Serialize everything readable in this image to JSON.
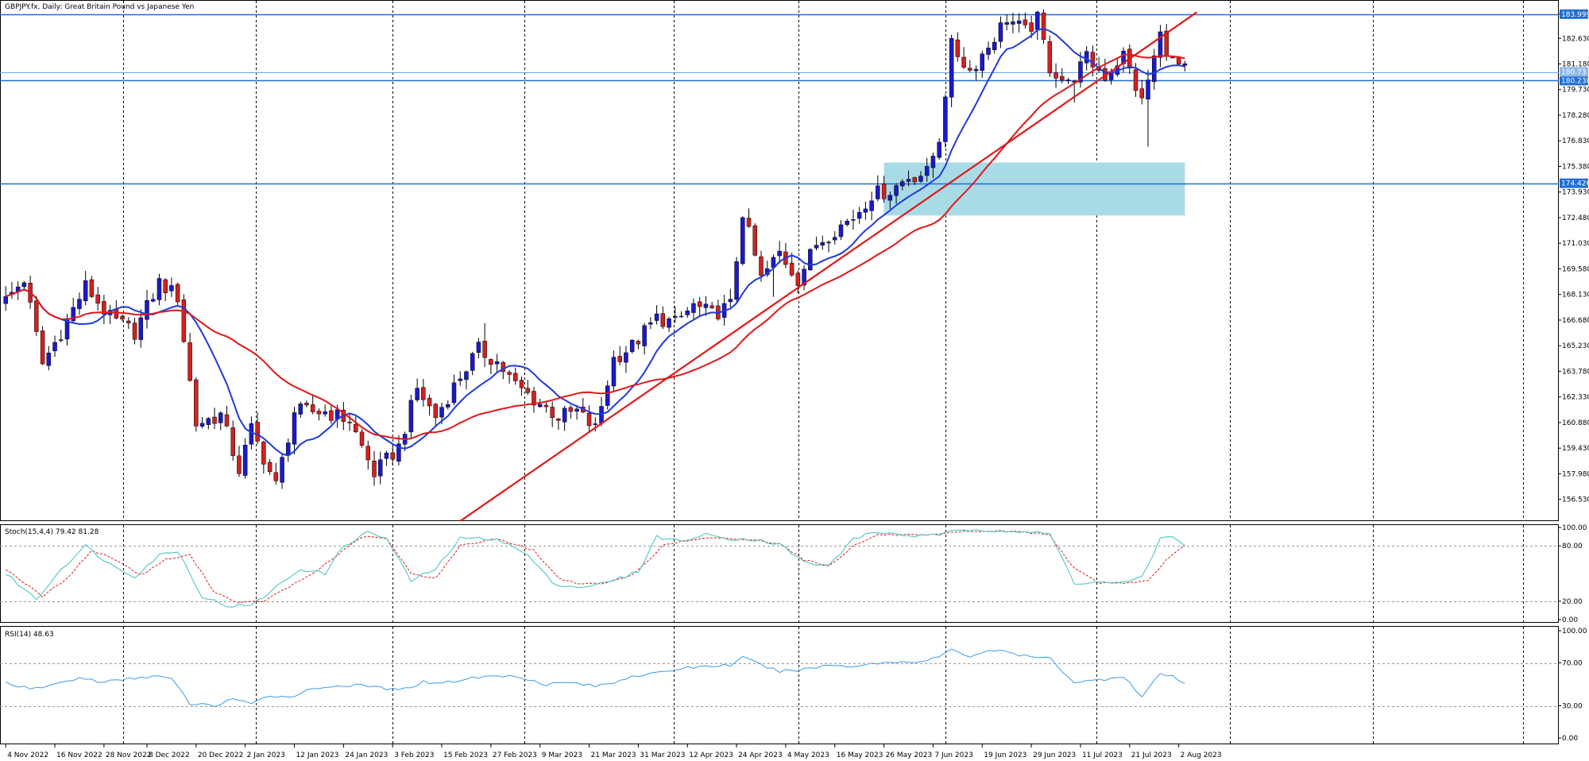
{
  "header": {
    "main_label": "GBPJPY.fx, Daily:  Great Britain Pound vs Japanese Yen",
    "stoch_label": "Stoch(15,4,4) 79.42 81.28",
    "rsi_label": "RSI(14) 48.63"
  },
  "colors": {
    "bull": "#1a1acc",
    "bear": "#d42020",
    "ma_fast": "#1e3adf",
    "ma_slow": "#e01818",
    "trendline": "#e01818",
    "hline": "#1f6fd6",
    "zone": "#a8dbe6",
    "stoch_main": "#3ec2c2",
    "stoch_signal": "#e01818",
    "rsi": "#3d9be9",
    "grid": "#000000"
  },
  "chart_data": [
    {
      "type": "candlestick",
      "symbol": "GBPJPY.fx",
      "timeframe": "Daily",
      "title": "GBPJPY.fx, Daily:  Great Britain Pound vs Japanese Yen",
      "ylim": [
        155.3,
        184.8
      ],
      "y_ticks": [
        "183.999",
        "182.630",
        "181.180",
        "179.730",
        "178.280",
        "176.830",
        "175.380",
        "173.930",
        "172.480",
        "171.030",
        "169.580",
        "168.130",
        "166.680",
        "165.230",
        "163.780",
        "162.330",
        "160.880",
        "159.430",
        "157.980",
        "156.530"
      ],
      "y_tick_values": [
        183.999,
        182.63,
        181.18,
        179.73,
        178.28,
        176.83,
        175.38,
        173.93,
        172.48,
        171.03,
        169.58,
        168.13,
        166.68,
        165.23,
        163.78,
        162.33,
        160.88,
        159.43,
        157.98,
        156.53
      ],
      "price_labels": [
        {
          "value": 183.999,
          "text": "183.999"
        },
        {
          "value": 180.238,
          "text": "180.238"
        },
        {
          "value": 174.426,
          "text": "174.426"
        },
        {
          "value": 180.73,
          "text": "180.73"
        }
      ],
      "x_labels": [
        "4 Nov 2022",
        "16 Nov 2022",
        "28 Nov 2022",
        "8 Dec 2022",
        "20 Dec 2022",
        "2 Jan 2023",
        "12 Jan 2023",
        "24 Jan 2023",
        "3 Feb 2023",
        "15 Feb 2023",
        "27 Feb 2023",
        "9 Mar 2023",
        "21 Mar 2023",
        "31 Mar 2023",
        "12 Apr 2023",
        "24 Apr 2023",
        "4 May 2023",
        "16 May 2023",
        "26 May 2023",
        "7 Jun 2023",
        "19 Jun 2023",
        "29 Jun 2023",
        "11 Jul 2023",
        "21 Jul 2023",
        "2 Aug 2023"
      ],
      "x_label_index": [
        0,
        8,
        16,
        23,
        31,
        39,
        47,
        55,
        63,
        71,
        79,
        87,
        95,
        103,
        111,
        119,
        127,
        135,
        143,
        151,
        159,
        167,
        175,
        183,
        191
      ],
      "horizontal_lines": [
        183.999,
        180.238,
        174.426,
        180.73
      ],
      "zone": {
        "from_index": 143,
        "to_index": 192,
        "low": 172.6,
        "high": 175.6
      },
      "trendlines": [
        {
          "from_index": 74,
          "from_value": 155.3,
          "to_index": 192,
          "to_value": 183.7
        }
      ],
      "moving_averages": [
        {
          "period": 10,
          "color_key": "ma_fast"
        },
        {
          "period": 30,
          "color_key": "ma_slow"
        }
      ],
      "key_points": [
        [
          0,
          167.8
        ],
        [
          3,
          169.0
        ],
        [
          6,
          164.2
        ],
        [
          9,
          166.0
        ],
        [
          13,
          168.6
        ],
        [
          17,
          166.8
        ],
        [
          21,
          166.0
        ],
        [
          25,
          168.8
        ],
        [
          28,
          168.0
        ],
        [
          31,
          160.8
        ],
        [
          35,
          161.3
        ],
        [
          38,
          158.2
        ],
        [
          40,
          160.5
        ],
        [
          44,
          157.3
        ],
        [
          47,
          161.5
        ],
        [
          52,
          161.5
        ],
        [
          56,
          161.0
        ],
        [
          60,
          158.0
        ],
        [
          64,
          159.5
        ],
        [
          67,
          162.8
        ],
        [
          70,
          161.2
        ],
        [
          74,
          163.5
        ],
        [
          77,
          165.0
        ],
        [
          80,
          164.3
        ],
        [
          83,
          163.0
        ],
        [
          86,
          162.2
        ],
        [
          90,
          161.2
        ],
        [
          93,
          161.5
        ],
        [
          96,
          160.5
        ],
        [
          99,
          164.5
        ],
        [
          102,
          165.2
        ],
        [
          106,
          166.8
        ],
        [
          109,
          166.5
        ],
        [
          112,
          167.5
        ],
        [
          115,
          167.0
        ],
        [
          118,
          167.5
        ],
        [
          120,
          172.8
        ],
        [
          123,
          169.0
        ],
        [
          126,
          170.5
        ],
        [
          129,
          169.0
        ],
        [
          132,
          171.0
        ],
        [
          135,
          171.8
        ],
        [
          138,
          172.5
        ],
        [
          141,
          173.8
        ],
        [
          144,
          174.0
        ],
        [
          147,
          174.8
        ],
        [
          150,
          175.0
        ],
        [
          152,
          177.0
        ],
        [
          154,
          182.2
        ],
        [
          157,
          180.8
        ],
        [
          160,
          182.2
        ],
        [
          163,
          183.8
        ],
        [
          166,
          183.0
        ],
        [
          168,
          183.7
        ],
        [
          170,
          181.0
        ],
        [
          173,
          180.0
        ],
        [
          176,
          181.5
        ],
        [
          179,
          180.5
        ],
        [
          182,
          181.7
        ],
        [
          185,
          179.0
        ],
        [
          188,
          182.8
        ],
        [
          190,
          181.3
        ],
        [
          192,
          180.8
        ]
      ],
      "spikes": [
        {
          "index": 168,
          "high": 184.2
        },
        {
          "index": 174,
          "low": 179.0
        },
        {
          "index": 186,
          "low": 176.5
        },
        {
          "index": 125,
          "low": 168.0
        },
        {
          "index": 54,
          "high": 161.9
        },
        {
          "index": 78,
          "high": 166.5
        }
      ]
    },
    {
      "type": "line",
      "name": "Stoch(15,4,4)",
      "ylim": [
        0,
        100
      ],
      "y_ticks": [
        "100.00",
        "80.00",
        "20.00",
        "0.00"
      ],
      "y_tick_values": [
        100,
        80,
        20,
        0
      ],
      "levels": [
        80,
        20
      ],
      "current": [
        79.42,
        81.28
      ],
      "main_points": [
        [
          0,
          50
        ],
        [
          5,
          22
        ],
        [
          9,
          55
        ],
        [
          13,
          80
        ],
        [
          17,
          60
        ],
        [
          21,
          47
        ],
        [
          25,
          70
        ],
        [
          28,
          75
        ],
        [
          32,
          25
        ],
        [
          36,
          15
        ],
        [
          40,
          15
        ],
        [
          44,
          35
        ],
        [
          48,
          55
        ],
        [
          52,
          50
        ],
        [
          55,
          80
        ],
        [
          59,
          95
        ],
        [
          62,
          88
        ],
        [
          66,
          42
        ],
        [
          70,
          55
        ],
        [
          74,
          88
        ],
        [
          80,
          88
        ],
        [
          85,
          70
        ],
        [
          89,
          40
        ],
        [
          93,
          35
        ],
        [
          98,
          40
        ],
        [
          103,
          52
        ],
        [
          106,
          90
        ],
        [
          110,
          85
        ],
        [
          114,
          92
        ],
        [
          118,
          88
        ],
        [
          122,
          87
        ],
        [
          126,
          82
        ],
        [
          130,
          62
        ],
        [
          134,
          58
        ],
        [
          138,
          88
        ],
        [
          142,
          95
        ],
        [
          146,
          92
        ],
        [
          150,
          90
        ],
        [
          154,
          95
        ],
        [
          158,
          98
        ],
        [
          162,
          97
        ],
        [
          166,
          95
        ],
        [
          170,
          93
        ],
        [
          174,
          40
        ],
        [
          178,
          40
        ],
        [
          182,
          40
        ],
        [
          185,
          45
        ],
        [
          188,
          88
        ],
        [
          190,
          90
        ],
        [
          192,
          82
        ]
      ],
      "signal_points": [
        [
          0,
          55
        ],
        [
          6,
          25
        ],
        [
          10,
          45
        ],
        [
          14,
          75
        ],
        [
          18,
          65
        ],
        [
          22,
          48
        ],
        [
          26,
          65
        ],
        [
          30,
          70
        ],
        [
          34,
          30
        ],
        [
          38,
          18
        ],
        [
          42,
          20
        ],
        [
          46,
          35
        ],
        [
          50,
          50
        ],
        [
          54,
          70
        ],
        [
          58,
          90
        ],
        [
          62,
          88
        ],
        [
          66,
          50
        ],
        [
          70,
          45
        ],
        [
          74,
          80
        ],
        [
          80,
          88
        ],
        [
          86,
          75
        ],
        [
          90,
          45
        ],
        [
          94,
          38
        ],
        [
          98,
          40
        ],
        [
          102,
          48
        ],
        [
          107,
          80
        ],
        [
          110,
          85
        ],
        [
          114,
          88
        ],
        [
          118,
          88
        ],
        [
          122,
          86
        ],
        [
          126,
          83
        ],
        [
          130,
          65
        ],
        [
          134,
          58
        ],
        [
          138,
          80
        ],
        [
          142,
          92
        ],
        [
          146,
          92
        ],
        [
          150,
          91
        ],
        [
          154,
          94
        ],
        [
          158,
          96
        ],
        [
          162,
          96
        ],
        [
          166,
          95
        ],
        [
          170,
          92
        ],
        [
          174,
          55
        ],
        [
          178,
          40
        ],
        [
          182,
          40
        ],
        [
          186,
          42
        ],
        [
          189,
          65
        ],
        [
          192,
          80
        ]
      ]
    },
    {
      "type": "line",
      "name": "RSI(14)",
      "ylim": [
        0,
        100
      ],
      "y_ticks": [
        "100.00",
        "70.00",
        "30.00",
        "0.00"
      ],
      "y_tick_values": [
        100,
        70,
        30,
        0
      ],
      "levels": [
        70,
        30
      ],
      "current": 48.63,
      "points": [
        [
          0,
          52
        ],
        [
          4,
          45
        ],
        [
          8,
          50
        ],
        [
          12,
          56
        ],
        [
          16,
          52
        ],
        [
          20,
          55
        ],
        [
          24,
          58
        ],
        [
          27,
          55
        ],
        [
          30,
          32
        ],
        [
          34,
          30
        ],
        [
          37,
          37
        ],
        [
          40,
          31
        ],
        [
          43,
          40
        ],
        [
          46,
          38
        ],
        [
          49,
          44
        ],
        [
          52,
          48
        ],
        [
          56,
          49
        ],
        [
          60,
          48
        ],
        [
          64,
          44
        ],
        [
          68,
          52
        ],
        [
          72,
          52
        ],
        [
          76,
          56
        ],
        [
          80,
          58
        ],
        [
          84,
          57
        ],
        [
          88,
          50
        ],
        [
          92,
          52
        ],
        [
          96,
          48
        ],
        [
          99,
          52
        ],
        [
          102,
          58
        ],
        [
          106,
          60
        ],
        [
          110,
          65
        ],
        [
          114,
          67
        ],
        [
          118,
          68
        ],
        [
          120,
          75
        ],
        [
          123,
          68
        ],
        [
          126,
          62
        ],
        [
          130,
          64
        ],
        [
          134,
          68
        ],
        [
          138,
          67
        ],
        [
          142,
          70
        ],
        [
          146,
          71
        ],
        [
          150,
          72
        ],
        [
          152,
          76
        ],
        [
          154,
          82
        ],
        [
          157,
          76
        ],
        [
          160,
          82
        ],
        [
          163,
          80
        ],
        [
          166,
          76
        ],
        [
          170,
          74
        ],
        [
          174,
          52
        ],
        [
          178,
          54
        ],
        [
          182,
          58
        ],
        [
          185,
          38
        ],
        [
          188,
          60
        ],
        [
          190,
          57
        ],
        [
          192,
          50
        ]
      ]
    }
  ]
}
